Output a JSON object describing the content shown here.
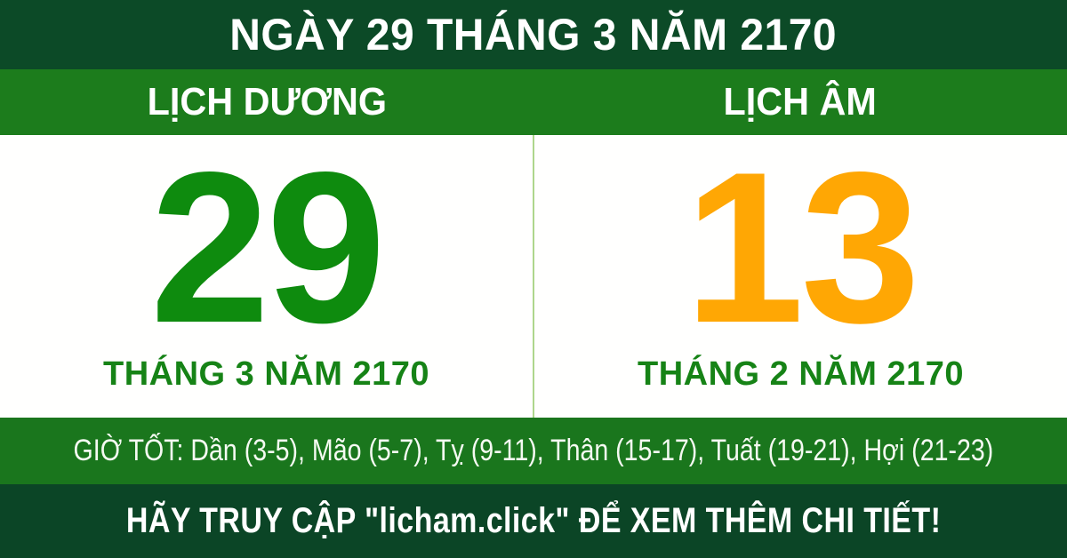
{
  "banner": {
    "title": "NGÀY 29 THÁNG 3 NĂM 2170",
    "solar": {
      "header": "LỊCH DƯƠNG",
      "day": "29",
      "month_year": "THÁNG 3 NĂM 2170"
    },
    "lunar": {
      "header": "LỊCH ÂM",
      "day": "13",
      "month_year": "THÁNG 2 NĂM 2170"
    },
    "good_hours": "GIỜ TỐT: Dần (3-5), Mão (5-7), Tỵ (9-11), Thân (15-17), Tuất (19-21), Hợi (21-23)",
    "cta": "HÃY TRUY CẬP \"licham.click\" ĐỂ XEM THÊM CHI TIẾT!",
    "colors": {
      "top_bar_dark_green": "#0c4a27",
      "header_bar_green": "#1c7c1c",
      "hours_bar_green": "#1a761d",
      "cta_bar_dark_green": "#0b4526",
      "solar_day_green": "#0e8b0e",
      "lunar_day_orange": "#ffa704",
      "month_label_green": "#168316",
      "panel_divider_light_green": "#aed68c",
      "text_white": "#ffffff"
    }
  }
}
